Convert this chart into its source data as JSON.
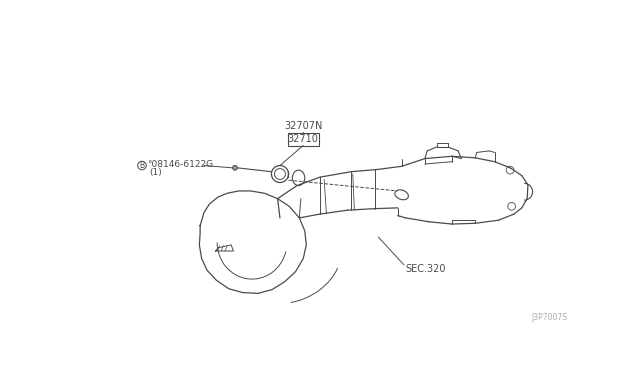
{
  "bg_color": "#ffffff",
  "line_color": "#4a4a4a",
  "text_color": "#4a4a4a",
  "label_32707N": "32707N",
  "label_32710": "32710",
  "label_bolt": "°08146-6122G",
  "label_bolt_sub": "(1)",
  "label_sec": "SEC.320",
  "label_watermark": "J3P7007S",
  "fig_width": 6.4,
  "fig_height": 3.72,
  "dpi": 100
}
